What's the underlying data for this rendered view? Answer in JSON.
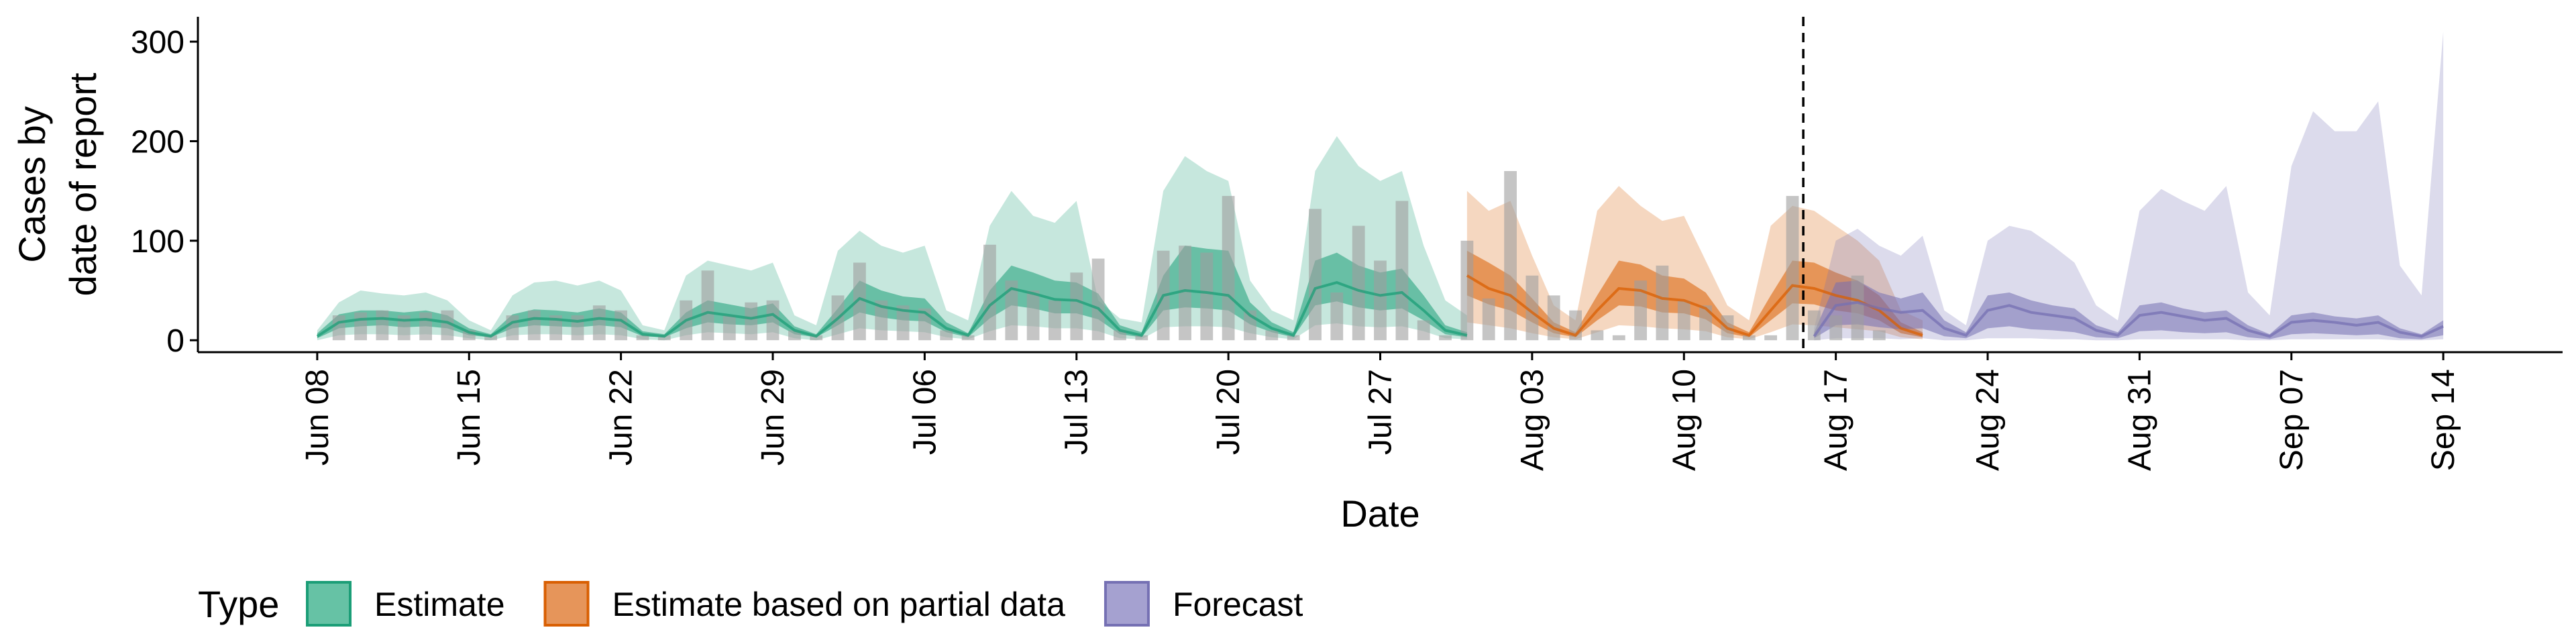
{
  "chart_data": {
    "type": "area",
    "xlabel": "Date",
    "ylabel_lines": [
      "Cases by",
      "date of report"
    ],
    "y_ticks": [
      0,
      100,
      200,
      300
    ],
    "ylim": [
      -12,
      325
    ],
    "x_ticks": [
      {
        "label": "Jun 08",
        "day": 0
      },
      {
        "label": "Jun 15",
        "day": 7
      },
      {
        "label": "Jun 22",
        "day": 14
      },
      {
        "label": "Jun 29",
        "day": 21
      },
      {
        "label": "Jul 06",
        "day": 28
      },
      {
        "label": "Jul 13",
        "day": 35
      },
      {
        "label": "Jul 20",
        "day": 42
      },
      {
        "label": "Jul 27",
        "day": 49
      },
      {
        "label": "Aug 03",
        "day": 56
      },
      {
        "label": "Aug 10",
        "day": 63
      },
      {
        "label": "Aug 17",
        "day": 70
      },
      {
        "label": "Aug 24",
        "day": 77
      },
      {
        "label": "Aug 31",
        "day": 84
      },
      {
        "label": "Sep 07",
        "day": 91
      },
      {
        "label": "Sep 14",
        "day": 98
      }
    ],
    "xlim": [
      -5.5,
      103.5
    ],
    "forecast_start_day": 68.5,
    "legend": {
      "title": "Type",
      "placement": "bottom",
      "items": [
        {
          "label": "Estimate",
          "fill": "#66c2a5",
          "stroke": "#1b9e77"
        },
        {
          "label": "Estimate based on partial data",
          "fill": "#e6955a",
          "stroke": "#d95f02"
        },
        {
          "label": "Forecast",
          "fill": "#a5a1d0",
          "stroke": "#7570b3"
        }
      ]
    },
    "colors": {
      "estimate": "#1b9e77",
      "partial": "#d95f02",
      "forecast": "#7570b3",
      "bars": "#9e9e9e"
    },
    "observed_cases": [
      0,
      25,
      28,
      30,
      25,
      28,
      30,
      10,
      5,
      25,
      30,
      25,
      25,
      35,
      30,
      5,
      5,
      40,
      70,
      25,
      38,
      40,
      10,
      5,
      45,
      78,
      40,
      35,
      32,
      10,
      5,
      96,
      60,
      50,
      40,
      68,
      82,
      10,
      5,
      90,
      95,
      88,
      145,
      30,
      10,
      5,
      132,
      48,
      115,
      80,
      140,
      20,
      5,
      100,
      42,
      170,
      65,
      45,
      30,
      10,
      5,
      60,
      75,
      40,
      35,
      25,
      5,
      5,
      145,
      30,
      25,
      65,
      10
    ],
    "series": [
      {
        "name": "Estimate",
        "start_day": 0,
        "median": [
          4,
          18,
          21,
          22,
          20,
          21,
          18,
          8,
          4,
          18,
          22,
          21,
          19,
          22,
          20,
          6,
          4,
          20,
          28,
          25,
          22,
          26,
          10,
          4,
          22,
          42,
          34,
          30,
          28,
          12,
          5,
          35,
          52,
          47,
          41,
          40,
          32,
          10,
          5,
          45,
          50,
          48,
          45,
          25,
          12,
          5,
          52,
          58,
          50,
          45,
          48,
          30,
          10,
          5
        ],
        "q50_lo": [
          2,
          12,
          14,
          15,
          13,
          14,
          12,
          5,
          3,
          12,
          15,
          14,
          13,
          15,
          13,
          4,
          3,
          12,
          18,
          16,
          15,
          18,
          6,
          3,
          15,
          28,
          23,
          20,
          19,
          8,
          3,
          22,
          35,
          32,
          27,
          27,
          21,
          6,
          3,
          30,
          33,
          32,
          30,
          16,
          8,
          3,
          35,
          39,
          33,
          30,
          32,
          20,
          6,
          3
        ],
        "q50_hi": [
          7,
          26,
          30,
          30,
          28,
          30,
          25,
          12,
          6,
          26,
          31,
          30,
          28,
          32,
          28,
          9,
          6,
          28,
          40,
          36,
          32,
          37,
          14,
          6,
          32,
          60,
          50,
          44,
          42,
          18,
          7,
          50,
          75,
          68,
          60,
          58,
          47,
          15,
          8,
          65,
          95,
          92,
          90,
          38,
          18,
          8,
          80,
          88,
          75,
          68,
          72,
          45,
          15,
          8
        ],
        "q90_lo": [
          0,
          5,
          6,
          6,
          5,
          6,
          5,
          2,
          0,
          5,
          6,
          6,
          5,
          6,
          5,
          1,
          0,
          5,
          8,
          7,
          6,
          8,
          2,
          0,
          6,
          12,
          10,
          9,
          8,
          3,
          1,
          9,
          15,
          14,
          12,
          12,
          9,
          2,
          1,
          13,
          14,
          14,
          13,
          7,
          3,
          1,
          15,
          17,
          14,
          13,
          14,
          9,
          2,
          1
        ],
        "q90_hi": [
          10,
          38,
          50,
          47,
          45,
          48,
          40,
          20,
          10,
          45,
          58,
          60,
          55,
          60,
          50,
          15,
          10,
          65,
          80,
          75,
          70,
          78,
          25,
          15,
          90,
          110,
          95,
          88,
          95,
          30,
          20,
          115,
          150,
          125,
          118,
          140,
          40,
          22,
          18,
          150,
          185,
          170,
          160,
          60,
          30,
          20,
          170,
          205,
          175,
          160,
          170,
          95,
          40,
          25
        ]
      },
      {
        "name": "Estimate based on partial data",
        "start_day": 53,
        "median": [
          65,
          52,
          45,
          28,
          12,
          5,
          30,
          52,
          50,
          42,
          40,
          32,
          12,
          5,
          30,
          55,
          52,
          45,
          40,
          30,
          12,
          5
        ],
        "q50_lo": [
          45,
          36,
          30,
          18,
          7,
          3,
          20,
          35,
          34,
          28,
          27,
          21,
          7,
          3,
          20,
          37,
          36,
          30,
          27,
          20,
          7,
          3
        ],
        "q50_hi": [
          90,
          78,
          65,
          42,
          18,
          8,
          45,
          80,
          76,
          65,
          62,
          48,
          18,
          8,
          45,
          80,
          78,
          68,
          60,
          45,
          18,
          8
        ],
        "q90_lo": [
          18,
          15,
          12,
          7,
          3,
          1,
          8,
          15,
          14,
          12,
          11,
          9,
          3,
          1,
          8,
          16,
          15,
          13,
          11,
          9,
          3,
          1
        ],
        "q90_hi": [
          150,
          130,
          140,
          85,
          35,
          20,
          130,
          155,
          135,
          120,
          125,
          80,
          35,
          20,
          115,
          135,
          130,
          115,
          100,
          80,
          30,
          20
        ]
      },
      {
        "name": "Forecast",
        "start_day": 69,
        "median": [
          4,
          35,
          38,
          32,
          28,
          30,
          12,
          5,
          30,
          35,
          28,
          25,
          22,
          10,
          5,
          25,
          28,
          24,
          20,
          22,
          10,
          4,
          18,
          20,
          18,
          15,
          18,
          8,
          4,
          14
        ],
        "q50_lo": [
          2,
          15,
          16,
          13,
          11,
          12,
          4,
          2,
          12,
          14,
          11,
          10,
          8,
          3,
          2,
          9,
          10,
          8,
          7,
          8,
          3,
          1,
          6,
          7,
          6,
          5,
          6,
          2,
          1,
          5
        ],
        "q50_hi": [
          8,
          58,
          60,
          48,
          42,
          48,
          20,
          8,
          45,
          48,
          40,
          35,
          32,
          15,
          8,
          35,
          38,
          32,
          28,
          30,
          15,
          6,
          25,
          28,
          24,
          22,
          25,
          12,
          6,
          20
        ],
        "q90_lo": [
          0,
          2,
          2,
          2,
          1,
          2,
          0,
          0,
          2,
          2,
          2,
          1,
          1,
          0,
          0,
          1,
          1,
          1,
          1,
          1,
          0,
          0,
          1,
          1,
          1,
          1,
          1,
          0,
          0,
          1
        ],
        "q90_hi": [
          12,
          100,
          112,
          95,
          85,
          105,
          30,
          15,
          100,
          115,
          110,
          95,
          78,
          35,
          20,
          130,
          152,
          140,
          130,
          155,
          48,
          25,
          175,
          230,
          210,
          210,
          240,
          75,
          45,
          310
        ]
      }
    ]
  }
}
